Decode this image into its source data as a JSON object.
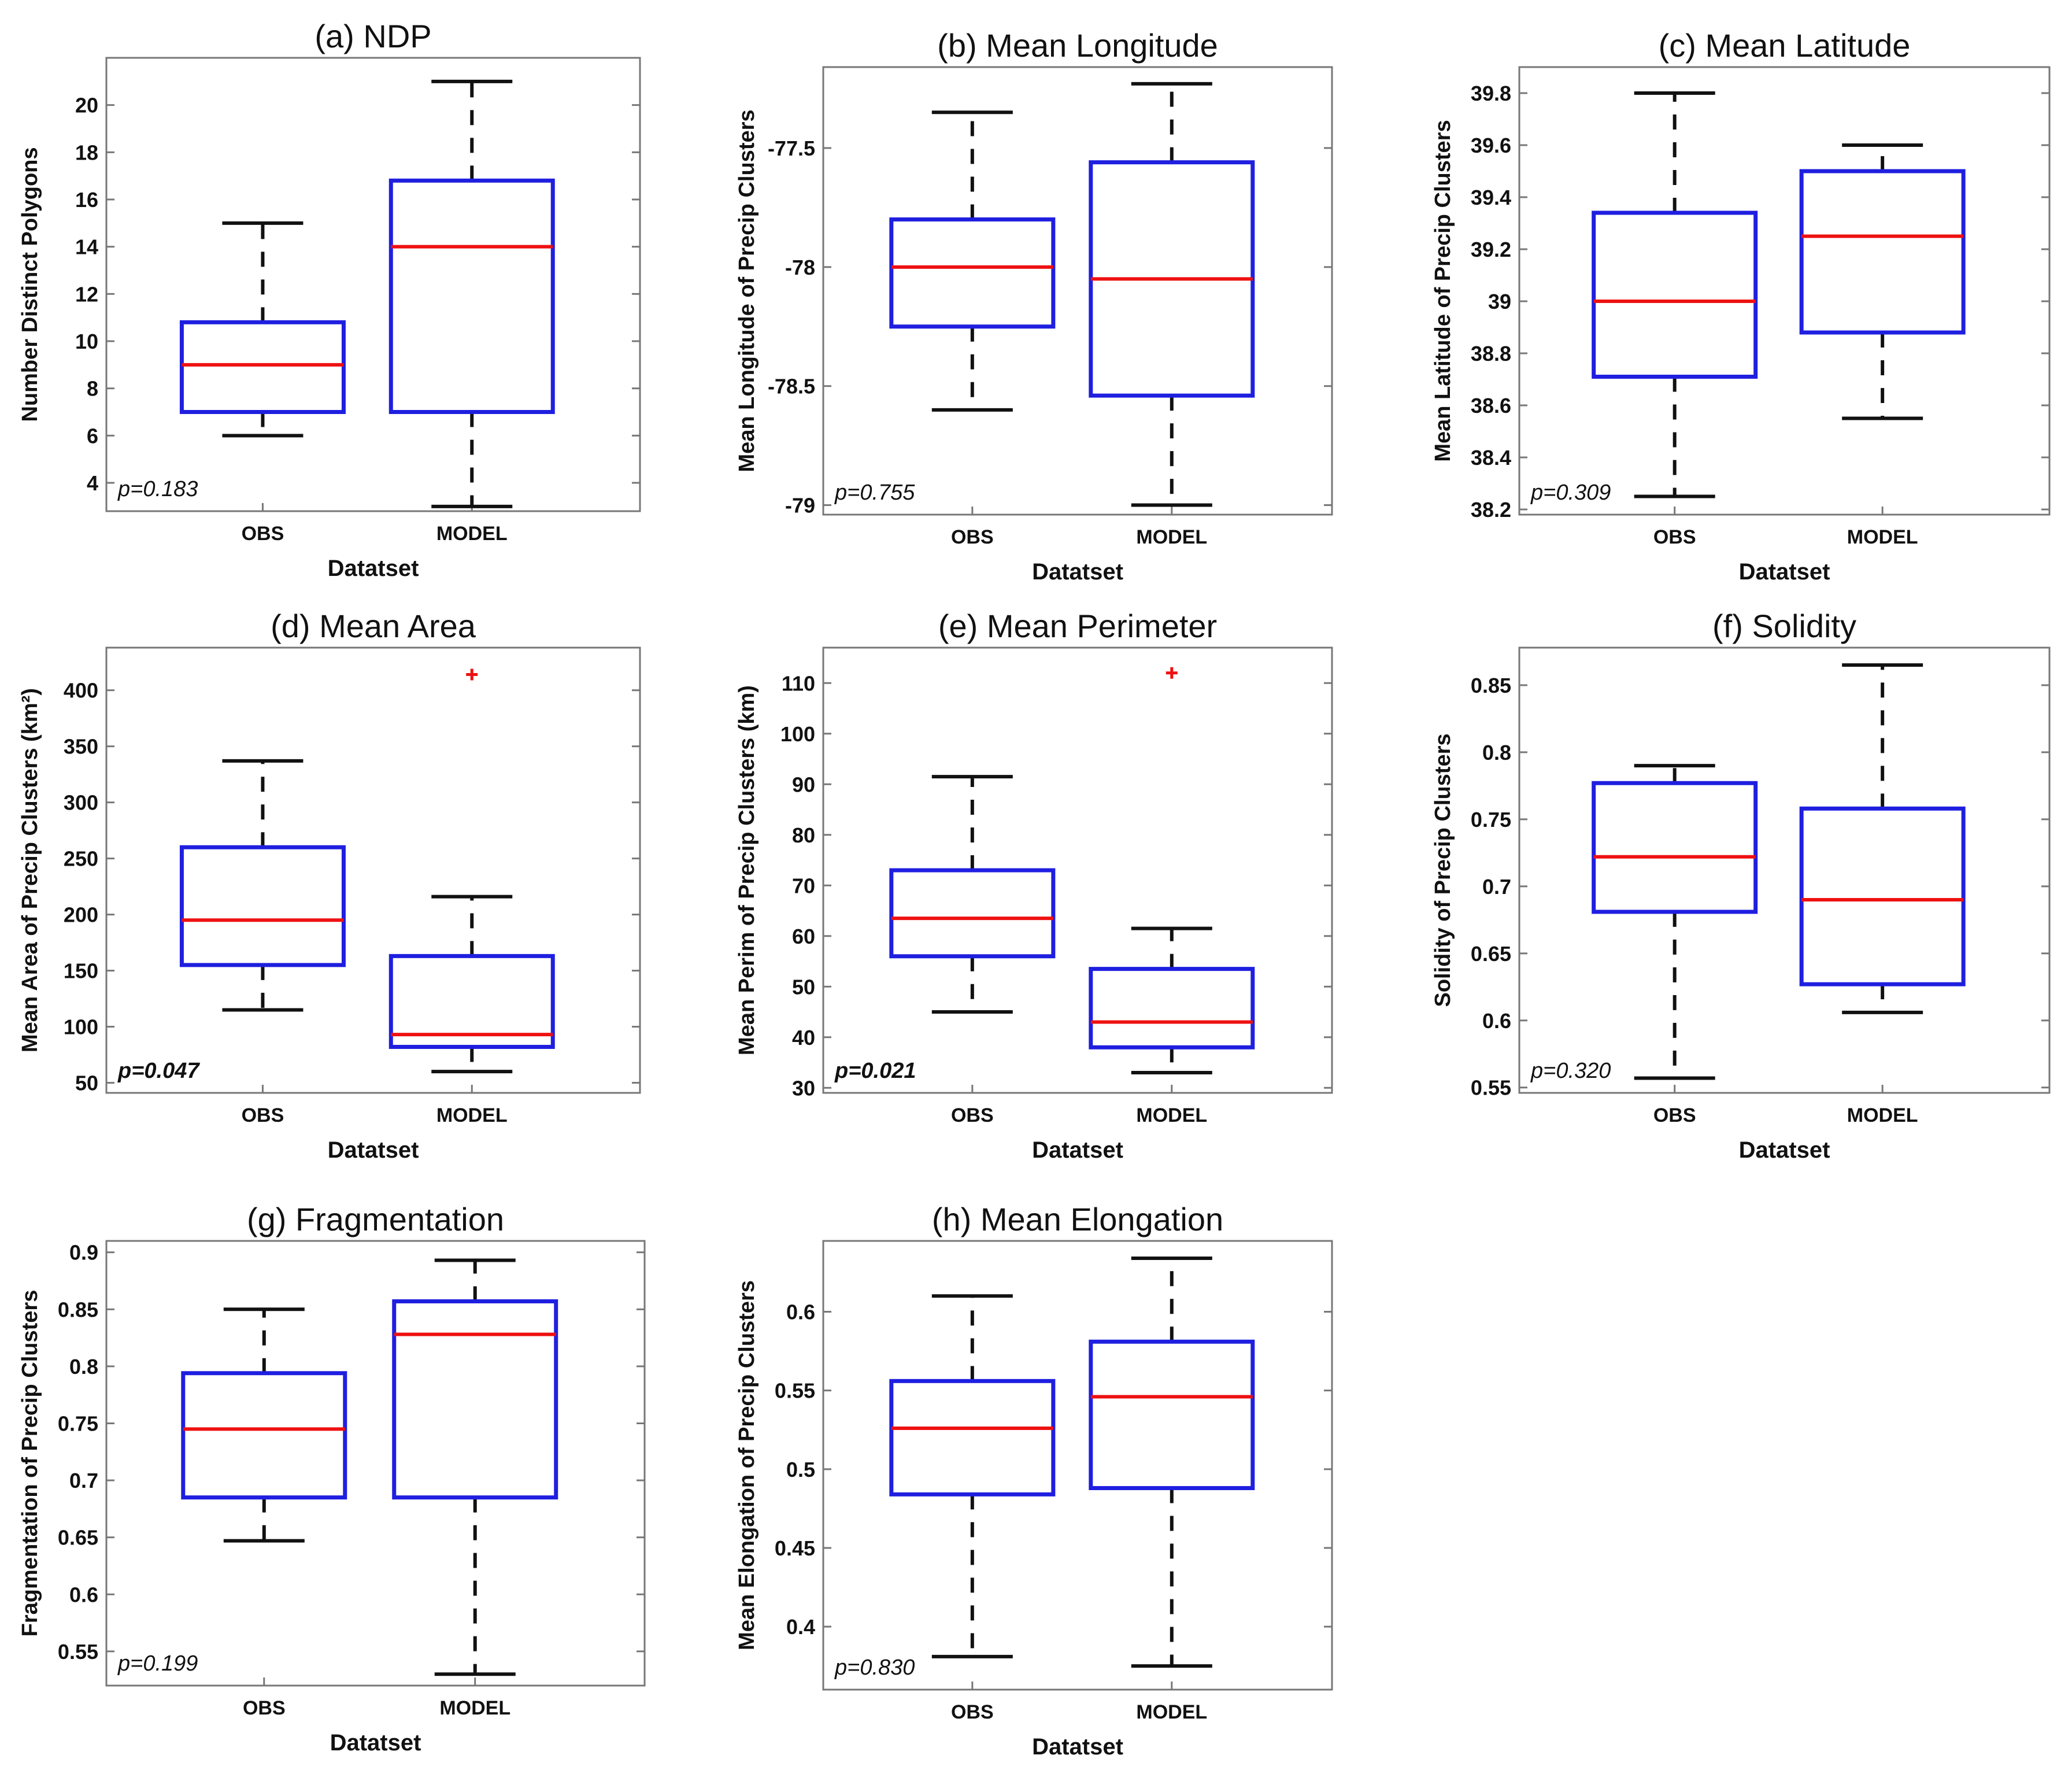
{
  "chart_data": [
    {
      "type": "boxplot",
      "title": "(a) NDP",
      "xlabel": "Datatset",
      "ylabel": "Number Distinct Polygons",
      "categories": [
        "OBS",
        "MODEL"
      ],
      "ylim": [
        2.8,
        22
      ],
      "yticks": [
        4,
        6,
        8,
        10,
        12,
        14,
        16,
        18,
        20
      ],
      "ytick_labels": [
        "4",
        "6",
        "8",
        "10",
        "12",
        "14",
        "16",
        "18",
        "20"
      ],
      "boxes": [
        {
          "name": "OBS",
          "whisker_low": 6,
          "q1": 7,
          "median": 9,
          "q3": 10.8,
          "whisker_high": 15,
          "outliers": []
        },
        {
          "name": "MODEL",
          "whisker_low": 3,
          "q1": 7,
          "median": 14,
          "q3": 16.8,
          "whisker_high": 21,
          "outliers": []
        }
      ],
      "annotation": "p=0.183",
      "annotation_bold": false
    },
    {
      "type": "boxplot",
      "title": "(b) Mean Longitude",
      "xlabel": "Datatset",
      "ylabel": "Mean Longitude of Precip Clusters",
      "categories": [
        "OBS",
        "MODEL"
      ],
      "ylim": [
        -79.04,
        -77.16
      ],
      "yticks": [
        -79,
        -78.5,
        -78,
        -77.5
      ],
      "ytick_labels": [
        "-79",
        "-78.5",
        "-78",
        "-77.5"
      ],
      "boxes": [
        {
          "name": "OBS",
          "whisker_low": -78.6,
          "q1": -78.25,
          "median": -78.0,
          "q3": -77.8,
          "whisker_high": -77.35,
          "outliers": []
        },
        {
          "name": "MODEL",
          "whisker_low": -79.0,
          "q1": -78.54,
          "median": -78.05,
          "q3": -77.56,
          "whisker_high": -77.23,
          "outliers": []
        }
      ],
      "annotation": "p=0.755",
      "annotation_bold": false
    },
    {
      "type": "boxplot",
      "title": "(c) Mean Latitude",
      "xlabel": "Datatset",
      "ylabel": "Mean Latitude of Precip Clusters",
      "categories": [
        "OBS",
        "MODEL"
      ],
      "ylim": [
        38.18,
        39.9
      ],
      "yticks": [
        38.2,
        38.4,
        38.6,
        38.8,
        39,
        39.2,
        39.4,
        39.6,
        39.8
      ],
      "ytick_labels": [
        "38.2",
        "38.4",
        "38.6",
        "38.8",
        "39",
        "39.2",
        "39.4",
        "39.6",
        "39.8"
      ],
      "boxes": [
        {
          "name": "OBS",
          "whisker_low": 38.25,
          "q1": 38.71,
          "median": 39.0,
          "q3": 39.34,
          "whisker_high": 39.8,
          "outliers": []
        },
        {
          "name": "MODEL",
          "whisker_low": 38.55,
          "q1": 38.88,
          "median": 39.25,
          "q3": 39.5,
          "whisker_high": 39.6,
          "outliers": []
        }
      ],
      "annotation": "p=0.309",
      "annotation_bold": false
    },
    {
      "type": "boxplot",
      "title": "(d) Mean Area",
      "xlabel": "Datatset",
      "ylabel": "Mean Area of Precip Clusters (km²)",
      "categories": [
        "OBS",
        "MODEL"
      ],
      "ylim": [
        41,
        438
      ],
      "yticks": [
        50,
        100,
        150,
        200,
        250,
        300,
        350,
        400
      ],
      "ytick_labels": [
        "50",
        "100",
        "150",
        "200",
        "250",
        "300",
        "350",
        "400"
      ],
      "boxes": [
        {
          "name": "OBS",
          "whisker_low": 115,
          "q1": 155,
          "median": 195,
          "q3": 260,
          "whisker_high": 337,
          "outliers": []
        },
        {
          "name": "MODEL",
          "whisker_low": 60,
          "q1": 82,
          "median": 93,
          "q3": 163,
          "whisker_high": 216,
          "outliers": [
            414
          ]
        }
      ],
      "annotation": "p=0.047",
      "annotation_bold": true
    },
    {
      "type": "boxplot",
      "title": "(e) Mean Perimeter",
      "xlabel": "Datatset",
      "ylabel": "Mean Perim of Precip Clusters (km)",
      "categories": [
        "OBS",
        "MODEL"
      ],
      "ylim": [
        29,
        117
      ],
      "yticks": [
        30,
        40,
        50,
        60,
        70,
        80,
        90,
        100,
        110
      ],
      "ytick_labels": [
        "30",
        "40",
        "50",
        "60",
        "70",
        "80",
        "90",
        "100",
        "110"
      ],
      "boxes": [
        {
          "name": "OBS",
          "whisker_low": 45,
          "q1": 56,
          "median": 63.5,
          "q3": 73,
          "whisker_high": 91.5,
          "outliers": []
        },
        {
          "name": "MODEL",
          "whisker_low": 33,
          "q1": 38,
          "median": 43,
          "q3": 53.5,
          "whisker_high": 61.5,
          "outliers": [
            112
          ]
        }
      ],
      "annotation": "p=0.021",
      "annotation_bold": true
    },
    {
      "type": "boxplot",
      "title": "(f) Solidity",
      "xlabel": "Datatset",
      "ylabel": "Solidity of Precip Clusters",
      "categories": [
        "OBS",
        "MODEL"
      ],
      "ylim": [
        0.546,
        0.878
      ],
      "yticks": [
        0.55,
        0.6,
        0.65,
        0.7,
        0.75,
        0.8,
        0.85
      ],
      "ytick_labels": [
        "0.55",
        "0.6",
        "0.65",
        "0.7",
        "0.75",
        "0.8",
        "0.85"
      ],
      "boxes": [
        {
          "name": "OBS",
          "whisker_low": 0.557,
          "q1": 0.681,
          "median": 0.722,
          "q3": 0.777,
          "whisker_high": 0.79,
          "outliers": []
        },
        {
          "name": "MODEL",
          "whisker_low": 0.606,
          "q1": 0.627,
          "median": 0.69,
          "q3": 0.758,
          "whisker_high": 0.865,
          "outliers": []
        }
      ],
      "annotation": "p=0.320",
      "annotation_bold": false
    },
    {
      "type": "boxplot",
      "title": "(g) Fragmentation",
      "xlabel": "Datatset",
      "ylabel": "Fragmentation of Precip Clusters",
      "categories": [
        "OBS",
        "MODEL"
      ],
      "ylim": [
        0.52,
        0.91
      ],
      "yticks": [
        0.55,
        0.6,
        0.65,
        0.7,
        0.75,
        0.8,
        0.85,
        0.9
      ],
      "ytick_labels": [
        "0.55",
        "0.6",
        "0.65",
        "0.7",
        "0.75",
        "0.8",
        "0.85",
        "0.9"
      ],
      "boxes": [
        {
          "name": "OBS",
          "whisker_low": 0.647,
          "q1": 0.685,
          "median": 0.745,
          "q3": 0.794,
          "whisker_high": 0.85,
          "outliers": []
        },
        {
          "name": "MODEL",
          "whisker_low": 0.53,
          "q1": 0.685,
          "median": 0.828,
          "q3": 0.857,
          "whisker_high": 0.893,
          "outliers": []
        }
      ],
      "annotation": "p=0.199",
      "annotation_bold": false
    },
    {
      "type": "boxplot",
      "title": "(h) Mean Elongation",
      "xlabel": "Datatset",
      "ylabel": "Mean Elongation of Precip Clusters",
      "categories": [
        "OBS",
        "MODEL"
      ],
      "ylim": [
        0.36,
        0.645
      ],
      "yticks": [
        0.4,
        0.45,
        0.5,
        0.55,
        0.6
      ],
      "ytick_labels": [
        "0.4",
        "0.45",
        "0.5",
        "0.55",
        "0.6"
      ],
      "boxes": [
        {
          "name": "OBS",
          "whisker_low": 0.381,
          "q1": 0.484,
          "median": 0.526,
          "q3": 0.556,
          "whisker_high": 0.61,
          "outliers": []
        },
        {
          "name": "MODEL",
          "whisker_low": 0.375,
          "q1": 0.488,
          "median": 0.546,
          "q3": 0.581,
          "whisker_high": 0.634,
          "outliers": []
        }
      ],
      "annotation": "p=0.830",
      "annotation_bold": false
    }
  ],
  "style": {
    "box_color": "#1f1fe0",
    "median_color": "#ee1111",
    "whisker_color": "#111111",
    "outlier_color": "#ee1111",
    "axes_color": "#777777"
  }
}
